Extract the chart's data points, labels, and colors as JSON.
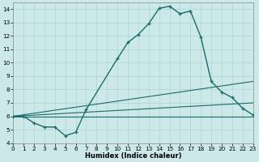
{
  "xlabel": "Humidex (Indice chaleur)",
  "bg_color": "#cce8e8",
  "grid_color": "#aad4d4",
  "line_color": "#1a6b6b",
  "main_x": [
    0,
    1,
    2,
    3,
    4,
    5,
    6,
    7,
    10,
    11,
    12,
    13,
    14,
    15,
    16,
    17,
    18,
    19,
    20,
    21,
    22,
    23
  ],
  "main_y": [
    6.0,
    6.0,
    5.5,
    5.2,
    5.2,
    4.55,
    4.8,
    6.5,
    10.3,
    11.5,
    12.1,
    12.9,
    14.05,
    14.2,
    13.65,
    13.85,
    11.9,
    8.6,
    7.8,
    7.4,
    6.6,
    6.1
  ],
  "flat_lines": [
    {
      "x": [
        0,
        23
      ],
      "y": [
        6.0,
        6.0
      ]
    },
    {
      "x": [
        0,
        23
      ],
      "y": [
        6.0,
        7.0
      ]
    },
    {
      "x": [
        0,
        23
      ],
      "y": [
        6.0,
        8.6
      ]
    }
  ],
  "xlim": [
    0,
    23
  ],
  "ylim": [
    4.0,
    14.5
  ],
  "xticks": [
    0,
    1,
    2,
    3,
    4,
    5,
    6,
    7,
    8,
    9,
    10,
    11,
    12,
    13,
    14,
    15,
    16,
    17,
    18,
    19,
    20,
    21,
    22,
    23
  ],
  "yticks": [
    4,
    5,
    6,
    7,
    8,
    9,
    10,
    11,
    12,
    13,
    14
  ],
  "xlabel_fontsize": 6.0,
  "tick_fontsize": 5.2,
  "linewidth_main": 1.0,
  "linewidth_flat": 0.8
}
